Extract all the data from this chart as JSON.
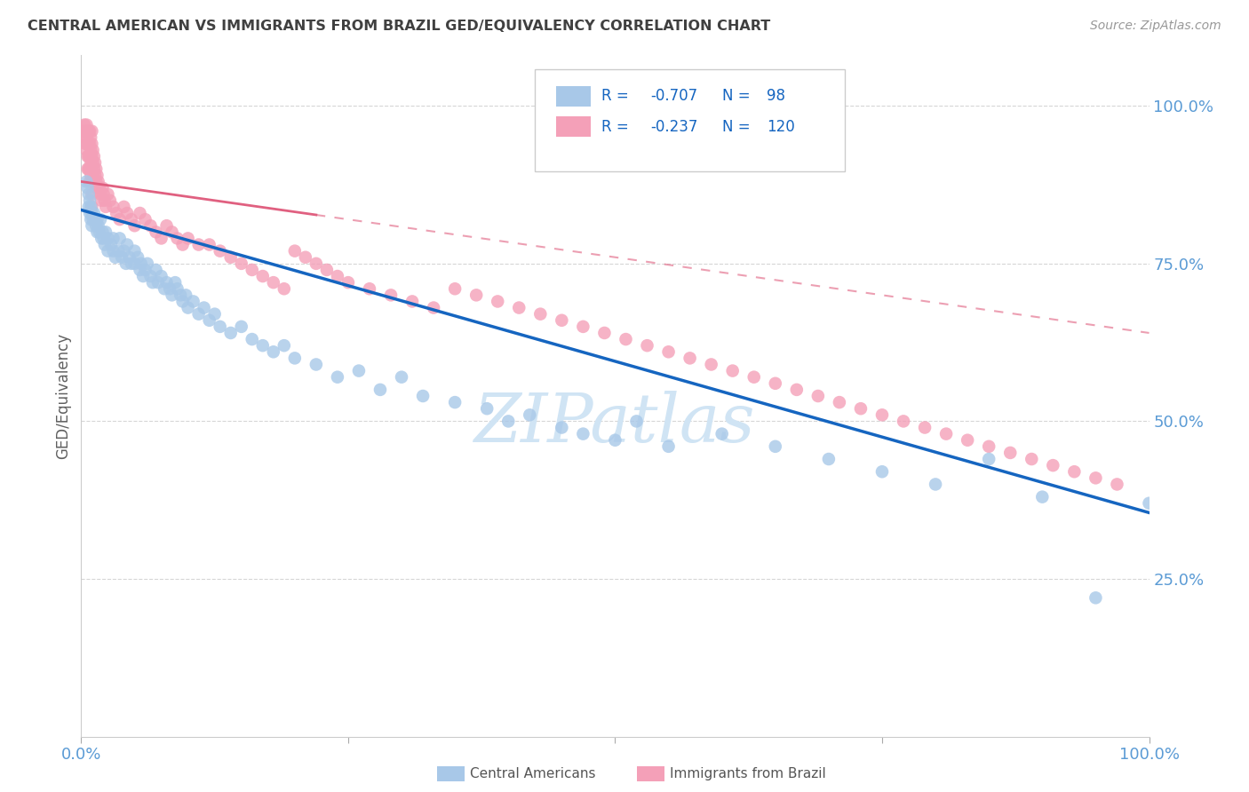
{
  "title": "CENTRAL AMERICAN VS IMMIGRANTS FROM BRAZIL GED/EQUIVALENCY CORRELATION CHART",
  "source": "Source: ZipAtlas.com",
  "ylabel": "GED/Equivalency",
  "legend_blue_r": "-0.707",
  "legend_blue_n": "98",
  "legend_pink_r": "-0.237",
  "legend_pink_n": "120",
  "legend_label_blue": "Central Americans",
  "legend_label_pink": "Immigrants from Brazil",
  "blue_color": "#a8c8e8",
  "pink_color": "#f4a0b8",
  "trendline_blue_color": "#1565c0",
  "trendline_pink_color": "#e06080",
  "background_color": "#ffffff",
  "tick_color": "#5b9bd5",
  "watermark_color": "#d0e4f4",
  "grid_color": "#cccccc",
  "title_color": "#404040",
  "ylabel_color": "#606060",
  "source_color": "#999999",
  "legend_text_color": "#1565c0",
  "xlim": [
    0.0,
    1.0
  ],
  "ylim": [
    0.0,
    1.08
  ],
  "blue_line_start_x": 0.0,
  "blue_line_start_y": 0.835,
  "blue_line_end_x": 1.0,
  "blue_line_end_y": 0.355,
  "pink_line_start_x": 0.0,
  "pink_line_start_y": 0.88,
  "pink_line_end_x": 1.0,
  "pink_line_end_y": 0.64,
  "blue_x": [
    0.005,
    0.006,
    0.007,
    0.007,
    0.008,
    0.008,
    0.009,
    0.009,
    0.01,
    0.01,
    0.011,
    0.012,
    0.013,
    0.014,
    0.015,
    0.015,
    0.016,
    0.017,
    0.018,
    0.019,
    0.02,
    0.021,
    0.022,
    0.023,
    0.025,
    0.025,
    0.028,
    0.03,
    0.03,
    0.032,
    0.035,
    0.036,
    0.038,
    0.04,
    0.042,
    0.043,
    0.045,
    0.047,
    0.05,
    0.05,
    0.053,
    0.055,
    0.056,
    0.058,
    0.06,
    0.062,
    0.065,
    0.067,
    0.07,
    0.072,
    0.075,
    0.078,
    0.08,
    0.083,
    0.085,
    0.088,
    0.09,
    0.093,
    0.095,
    0.098,
    0.1,
    0.105,
    0.11,
    0.115,
    0.12,
    0.125,
    0.13,
    0.14,
    0.15,
    0.16,
    0.17,
    0.18,
    0.19,
    0.2,
    0.22,
    0.24,
    0.26,
    0.28,
    0.3,
    0.32,
    0.35,
    0.38,
    0.4,
    0.42,
    0.45,
    0.47,
    0.5,
    0.52,
    0.55,
    0.6,
    0.65,
    0.7,
    0.75,
    0.8,
    0.85,
    0.9,
    0.95,
    1.0
  ],
  "blue_y": [
    0.88,
    0.87,
    0.86,
    0.84,
    0.85,
    0.83,
    0.84,
    0.82,
    0.83,
    0.81,
    0.82,
    0.83,
    0.82,
    0.81,
    0.82,
    0.8,
    0.81,
    0.8,
    0.82,
    0.79,
    0.8,
    0.79,
    0.78,
    0.8,
    0.79,
    0.77,
    0.78,
    0.79,
    0.77,
    0.76,
    0.77,
    0.79,
    0.76,
    0.77,
    0.75,
    0.78,
    0.76,
    0.75,
    0.77,
    0.75,
    0.76,
    0.74,
    0.75,
    0.73,
    0.74,
    0.75,
    0.73,
    0.72,
    0.74,
    0.72,
    0.73,
    0.71,
    0.72,
    0.71,
    0.7,
    0.72,
    0.71,
    0.7,
    0.69,
    0.7,
    0.68,
    0.69,
    0.67,
    0.68,
    0.66,
    0.67,
    0.65,
    0.64,
    0.65,
    0.63,
    0.62,
    0.61,
    0.62,
    0.6,
    0.59,
    0.57,
    0.58,
    0.55,
    0.57,
    0.54,
    0.53,
    0.52,
    0.5,
    0.51,
    0.49,
    0.48,
    0.47,
    0.5,
    0.46,
    0.48,
    0.46,
    0.44,
    0.42,
    0.4,
    0.44,
    0.38,
    0.22,
    0.37
  ],
  "pink_x": [
    0.002,
    0.003,
    0.003,
    0.004,
    0.004,
    0.005,
    0.005,
    0.005,
    0.006,
    0.006,
    0.006,
    0.006,
    0.007,
    0.007,
    0.007,
    0.007,
    0.008,
    0.008,
    0.008,
    0.008,
    0.008,
    0.009,
    0.009,
    0.009,
    0.009,
    0.01,
    0.01,
    0.01,
    0.01,
    0.01,
    0.01,
    0.01,
    0.011,
    0.011,
    0.012,
    0.012,
    0.013,
    0.013,
    0.014,
    0.014,
    0.015,
    0.015,
    0.016,
    0.017,
    0.018,
    0.019,
    0.02,
    0.021,
    0.022,
    0.023,
    0.025,
    0.027,
    0.03,
    0.033,
    0.036,
    0.04,
    0.043,
    0.047,
    0.05,
    0.055,
    0.06,
    0.065,
    0.07,
    0.075,
    0.08,
    0.085,
    0.09,
    0.095,
    0.1,
    0.11,
    0.12,
    0.13,
    0.14,
    0.15,
    0.16,
    0.17,
    0.18,
    0.19,
    0.2,
    0.21,
    0.22,
    0.23,
    0.24,
    0.25,
    0.27,
    0.29,
    0.31,
    0.33,
    0.35,
    0.37,
    0.39,
    0.41,
    0.43,
    0.45,
    0.47,
    0.49,
    0.51,
    0.53,
    0.55,
    0.57,
    0.59,
    0.61,
    0.63,
    0.65,
    0.67,
    0.69,
    0.71,
    0.73,
    0.75,
    0.77,
    0.79,
    0.81,
    0.83,
    0.85,
    0.87,
    0.89,
    0.91,
    0.93,
    0.95,
    0.97
  ],
  "pink_y": [
    0.96,
    0.97,
    0.95,
    0.96,
    0.94,
    0.97,
    0.95,
    0.93,
    0.96,
    0.94,
    0.92,
    0.9,
    0.96,
    0.94,
    0.92,
    0.9,
    0.96,
    0.94,
    0.92,
    0.9,
    0.88,
    0.95,
    0.93,
    0.91,
    0.89,
    0.96,
    0.94,
    0.92,
    0.9,
    0.88,
    0.86,
    0.84,
    0.93,
    0.91,
    0.92,
    0.9,
    0.91,
    0.89,
    0.9,
    0.88,
    0.89,
    0.87,
    0.88,
    0.87,
    0.86,
    0.85,
    0.87,
    0.86,
    0.85,
    0.84,
    0.86,
    0.85,
    0.84,
    0.83,
    0.82,
    0.84,
    0.83,
    0.82,
    0.81,
    0.83,
    0.82,
    0.81,
    0.8,
    0.79,
    0.81,
    0.8,
    0.79,
    0.78,
    0.79,
    0.78,
    0.78,
    0.77,
    0.76,
    0.75,
    0.74,
    0.73,
    0.72,
    0.71,
    0.77,
    0.76,
    0.75,
    0.74,
    0.73,
    0.72,
    0.71,
    0.7,
    0.69,
    0.68,
    0.71,
    0.7,
    0.69,
    0.68,
    0.67,
    0.66,
    0.65,
    0.64,
    0.63,
    0.62,
    0.61,
    0.6,
    0.59,
    0.58,
    0.57,
    0.56,
    0.55,
    0.54,
    0.53,
    0.52,
    0.51,
    0.5,
    0.49,
    0.48,
    0.47,
    0.46,
    0.45,
    0.44,
    0.43,
    0.42,
    0.41,
    0.4
  ]
}
